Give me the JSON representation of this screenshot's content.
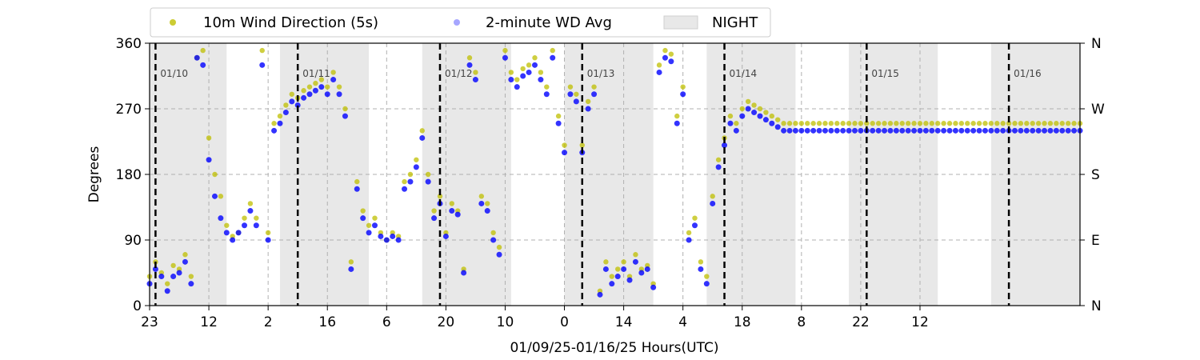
{
  "chart_data": {
    "type": "scatter",
    "xlabel": "01/09/25-01/16/25  Hours(UTC)",
    "ylabel": "Degrees",
    "ylim": [
      0,
      360
    ],
    "xlim": [
      0,
      157
    ],
    "x_ticks": [
      {
        "pos": 0,
        "label": "23"
      },
      {
        "pos": 10,
        "label": "12"
      },
      {
        "pos": 20,
        "label": "2"
      },
      {
        "pos": 30,
        "label": "16"
      },
      {
        "pos": 40,
        "label": "6"
      },
      {
        "pos": 50,
        "label": "20"
      },
      {
        "pos": 60,
        "label": "10"
      },
      {
        "pos": 70,
        "label": "0"
      },
      {
        "pos": 80,
        "label": "14"
      },
      {
        "pos": 90,
        "label": "4"
      },
      {
        "pos": 100,
        "label": "18"
      },
      {
        "pos": 110,
        "label": "8"
      },
      {
        "pos": 120,
        "label": "22"
      },
      {
        "pos": 130,
        "label": "12"
      }
    ],
    "y_ticks_left": [
      0,
      90,
      180,
      270,
      360
    ],
    "y_ticks_right": [
      "N",
      "E",
      "S",
      "W",
      "N"
    ],
    "grid": true,
    "legend_position": "top-left, above plot",
    "legend": [
      {
        "label": "10m Wind Direction (5s)",
        "color": "#bfbf00"
      },
      {
        "label": "2-minute WD Avg",
        "color": "#0000ff"
      },
      {
        "label": "NIGHT",
        "color": "#e8e8e8"
      }
    ],
    "day_markers": [
      {
        "x": 1,
        "label": "01/10"
      },
      {
        "x": 25,
        "label": "01/11"
      },
      {
        "x": 49,
        "label": "01/12"
      },
      {
        "x": 73,
        "label": "01/13"
      },
      {
        "x": 97,
        "label": "01/14"
      },
      {
        "x": 121,
        "label": "01/15"
      },
      {
        "x": 145,
        "label": "01/16"
      }
    ],
    "night_periods": [
      [
        0,
        13
      ],
      [
        22,
        37
      ],
      [
        46,
        61
      ],
      [
        70,
        85
      ],
      [
        94,
        109
      ],
      [
        118,
        133
      ],
      [
        142,
        157
      ]
    ],
    "series": [
      {
        "name": "10m Wind Direction (5s)",
        "color": "#bfbf00",
        "x": [
          0,
          1,
          2,
          3,
          4,
          5,
          6,
          7,
          8,
          9,
          10,
          11,
          12,
          13,
          14,
          15,
          16,
          17,
          18,
          19,
          20,
          21,
          22,
          23,
          24,
          25,
          26,
          27,
          28,
          29,
          30,
          31,
          32,
          33,
          34,
          35,
          36,
          37,
          38,
          39,
          40,
          41,
          42,
          43,
          44,
          45,
          46,
          47,
          48,
          49,
          50,
          51,
          52,
          53,
          54,
          55,
          56,
          57,
          58,
          59,
          60,
          61,
          62,
          63,
          64,
          65,
          66,
          67,
          68,
          69,
          70,
          71,
          72,
          73,
          74,
          75,
          76,
          77,
          78,
          79,
          80,
          81,
          82,
          83,
          84,
          85,
          86,
          87,
          88,
          89,
          90,
          91,
          92,
          93,
          94,
          95,
          96,
          97,
          98,
          99,
          100,
          101,
          102,
          103,
          104,
          105,
          106,
          107,
          108,
          109,
          110,
          111,
          112,
          113,
          114,
          115,
          116,
          117,
          118,
          119,
          120,
          121,
          122,
          123,
          124,
          125,
          126,
          127,
          128,
          129,
          130,
          131,
          132,
          133,
          134,
          135,
          136,
          137,
          138,
          139,
          140,
          141,
          142,
          143,
          144,
          145,
          146,
          147,
          148,
          149,
          150,
          151,
          152,
          153,
          154,
          155,
          156,
          157
        ],
        "y": [
          40,
          60,
          45,
          30,
          55,
          50,
          70,
          40,
          340,
          350,
          230,
          180,
          150,
          110,
          95,
          100,
          120,
          140,
          120,
          350,
          100,
          250,
          260,
          275,
          290,
          285,
          295,
          300,
          305,
          310,
          300,
          320,
          300,
          270,
          60,
          170,
          130,
          110,
          120,
          100,
          90,
          100,
          95,
          170,
          180,
          200,
          240,
          180,
          130,
          150,
          100,
          140,
          130,
          50,
          340,
          320,
          150,
          140,
          100,
          80,
          350,
          320,
          310,
          325,
          330,
          340,
          320,
          300,
          350,
          260,
          220,
          300,
          290,
          220,
          280,
          300,
          20,
          60,
          40,
          50,
          60,
          40,
          70,
          50,
          55,
          30,
          330,
          350,
          345,
          260,
          300,
          100,
          120,
          60,
          40,
          150,
          200,
          230,
          260,
          250,
          270,
          280,
          275,
          270,
          265,
          260,
          255,
          250,
          250,
          250,
          250,
          250,
          250,
          250,
          250,
          250,
          250,
          250,
          250,
          250,
          250,
          250,
          250,
          250,
          250,
          250,
          250,
          250,
          250,
          250,
          250,
          250,
          250,
          250,
          250,
          250,
          250,
          250,
          250,
          250,
          250,
          250,
          250,
          250,
          250,
          250,
          250,
          250,
          250,
          250,
          250,
          250,
          250,
          250,
          250,
          250,
          250,
          250
        ]
      },
      {
        "name": "2-minute WD Avg",
        "color": "#0000ff",
        "x": [
          0,
          1,
          2,
          3,
          4,
          5,
          6,
          7,
          8,
          9,
          10,
          11,
          12,
          13,
          14,
          15,
          16,
          17,
          18,
          19,
          20,
          21,
          22,
          23,
          24,
          25,
          26,
          27,
          28,
          29,
          30,
          31,
          32,
          33,
          34,
          35,
          36,
          37,
          38,
          39,
          40,
          41,
          42,
          43,
          44,
          45,
          46,
          47,
          48,
          49,
          50,
          51,
          52,
          53,
          54,
          55,
          56,
          57,
          58,
          59,
          60,
          61,
          62,
          63,
          64,
          65,
          66,
          67,
          68,
          69,
          70,
          71,
          72,
          73,
          74,
          75,
          76,
          77,
          78,
          79,
          80,
          81,
          82,
          83,
          84,
          85,
          86,
          87,
          88,
          89,
          90,
          91,
          92,
          93,
          94,
          95,
          96,
          97,
          98,
          99,
          100,
          101,
          102,
          103,
          104,
          105,
          106,
          107,
          108,
          109,
          110,
          111,
          112,
          113,
          114,
          115,
          116,
          117,
          118,
          119,
          120,
          121,
          122,
          123,
          124,
          125,
          126,
          127,
          128,
          129,
          130,
          131,
          132,
          133,
          134,
          135,
          136,
          137,
          138,
          139,
          140,
          141,
          142,
          143,
          144,
          145,
          146,
          147,
          148,
          149,
          150,
          151,
          152,
          153,
          154,
          155,
          156,
          157
        ],
        "y": [
          30,
          50,
          40,
          20,
          40,
          45,
          60,
          30,
          340,
          330,
          200,
          150,
          120,
          100,
          90,
          100,
          110,
          130,
          110,
          330,
          90,
          240,
          250,
          265,
          280,
          275,
          285,
          290,
          295,
          300,
          290,
          310,
          290,
          260,
          50,
          160,
          120,
          100,
          110,
          95,
          90,
          95,
          90,
          160,
          170,
          190,
          230,
          170,
          120,
          140,
          95,
          130,
          125,
          45,
          330,
          310,
          140,
          130,
          90,
          70,
          340,
          310,
          300,
          315,
          320,
          330,
          310,
          290,
          340,
          250,
          210,
          290,
          280,
          210,
          270,
          290,
          15,
          50,
          30,
          40,
          50,
          35,
          60,
          45,
          50,
          25,
          320,
          340,
          335,
          250,
          290,
          90,
          110,
          50,
          30,
          140,
          190,
          220,
          250,
          240,
          260,
          270,
          265,
          260,
          255,
          250,
          245,
          240,
          240,
          240,
          240,
          240,
          240,
          240,
          240,
          240,
          240,
          240,
          240,
          240,
          240,
          240,
          240,
          240,
          240,
          240,
          240,
          240,
          240,
          240,
          240,
          240,
          240,
          240,
          240,
          240,
          240,
          240,
          240,
          240,
          240,
          240,
          240,
          240,
          240,
          240,
          240,
          240,
          240,
          240,
          240,
          240,
          240,
          240,
          240,
          240,
          240,
          240
        ]
      }
    ]
  }
}
